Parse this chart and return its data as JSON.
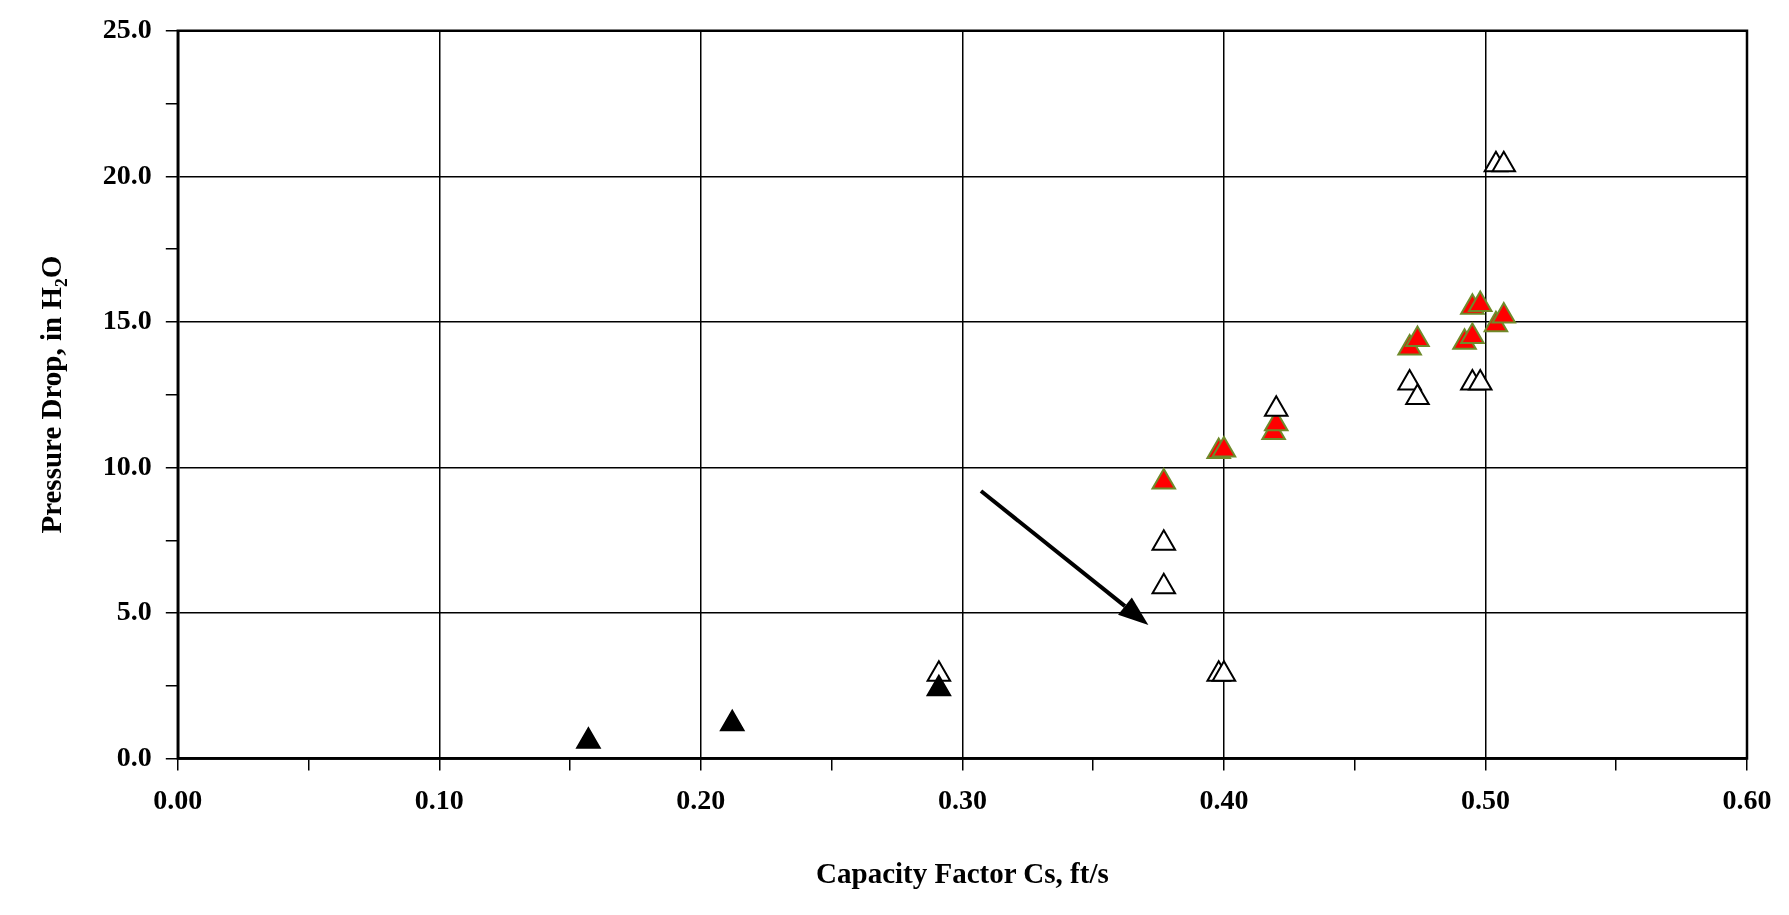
{
  "chart_data": {
    "type": "scatter",
    "xlabel": "Capacity Factor Cs, ft/s",
    "ylabel": "Pressure Drop, in H₂O",
    "xlim": [
      0,
      0.6
    ],
    "ylim": [
      0,
      25
    ],
    "xticks": [
      {
        "value": 0,
        "label": "0.00"
      },
      {
        "value": 0.05,
        "label": null
      },
      {
        "value": 0.1,
        "label": "0.10"
      },
      {
        "value": 0.15,
        "label": null
      },
      {
        "value": 0.2,
        "label": "0.20"
      },
      {
        "value": 0.25,
        "label": null
      },
      {
        "value": 0.3,
        "label": "0.30"
      },
      {
        "value": 0.35,
        "label": null
      },
      {
        "value": 0.4,
        "label": "0.40"
      },
      {
        "value": 0.45,
        "label": null
      },
      {
        "value": 0.5,
        "label": "0.50"
      },
      {
        "value": 0.55,
        "label": null
      },
      {
        "value": 0.6,
        "label": "0.60"
      }
    ],
    "yticks": [
      {
        "value": 0,
        "label": "0.0"
      },
      {
        "value": 2.5,
        "label": null
      },
      {
        "value": 5,
        "label": "5.0"
      },
      {
        "value": 7.5,
        "label": null
      },
      {
        "value": 10,
        "label": "10.0"
      },
      {
        "value": 12.5,
        "label": null
      },
      {
        "value": 15,
        "label": "15.0"
      },
      {
        "value": 17.5,
        "label": null
      },
      {
        "value": 20,
        "label": "20.0"
      },
      {
        "value": 22.5,
        "label": null
      },
      {
        "value": 25,
        "label": "25.0"
      }
    ],
    "grid": true,
    "legend": false,
    "marker": "triangle",
    "series": [
      {
        "color": "#000000",
        "x": [
          0.157,
          0.212,
          0.291
        ],
        "values": [
          0.6,
          1.2,
          2.4
        ]
      },
      {
        "color": "#ffffff",
        "x": [
          0.291,
          0.377,
          0.377,
          0.398,
          0.4,
          0.42,
          0.471,
          0.474,
          0.495,
          0.498,
          0.504,
          0.507
        ],
        "values": [
          2.9,
          7.4,
          5.9,
          2.9,
          2.9,
          12.0,
          12.9,
          12.4,
          12.9,
          12.9,
          20.4,
          20.4
        ]
      },
      {
        "color": "#ff0000",
        "x": [
          0.377,
          0.398,
          0.4,
          0.419,
          0.42,
          0.471,
          0.474,
          0.492,
          0.495,
          0.495,
          0.498,
          0.504,
          0.507
        ],
        "values": [
          9.5,
          10.55,
          10.6,
          11.2,
          11.5,
          14.1,
          14.4,
          14.3,
          14.5,
          15.5,
          15.6,
          14.9,
          15.2
        ]
      }
    ]
  }
}
